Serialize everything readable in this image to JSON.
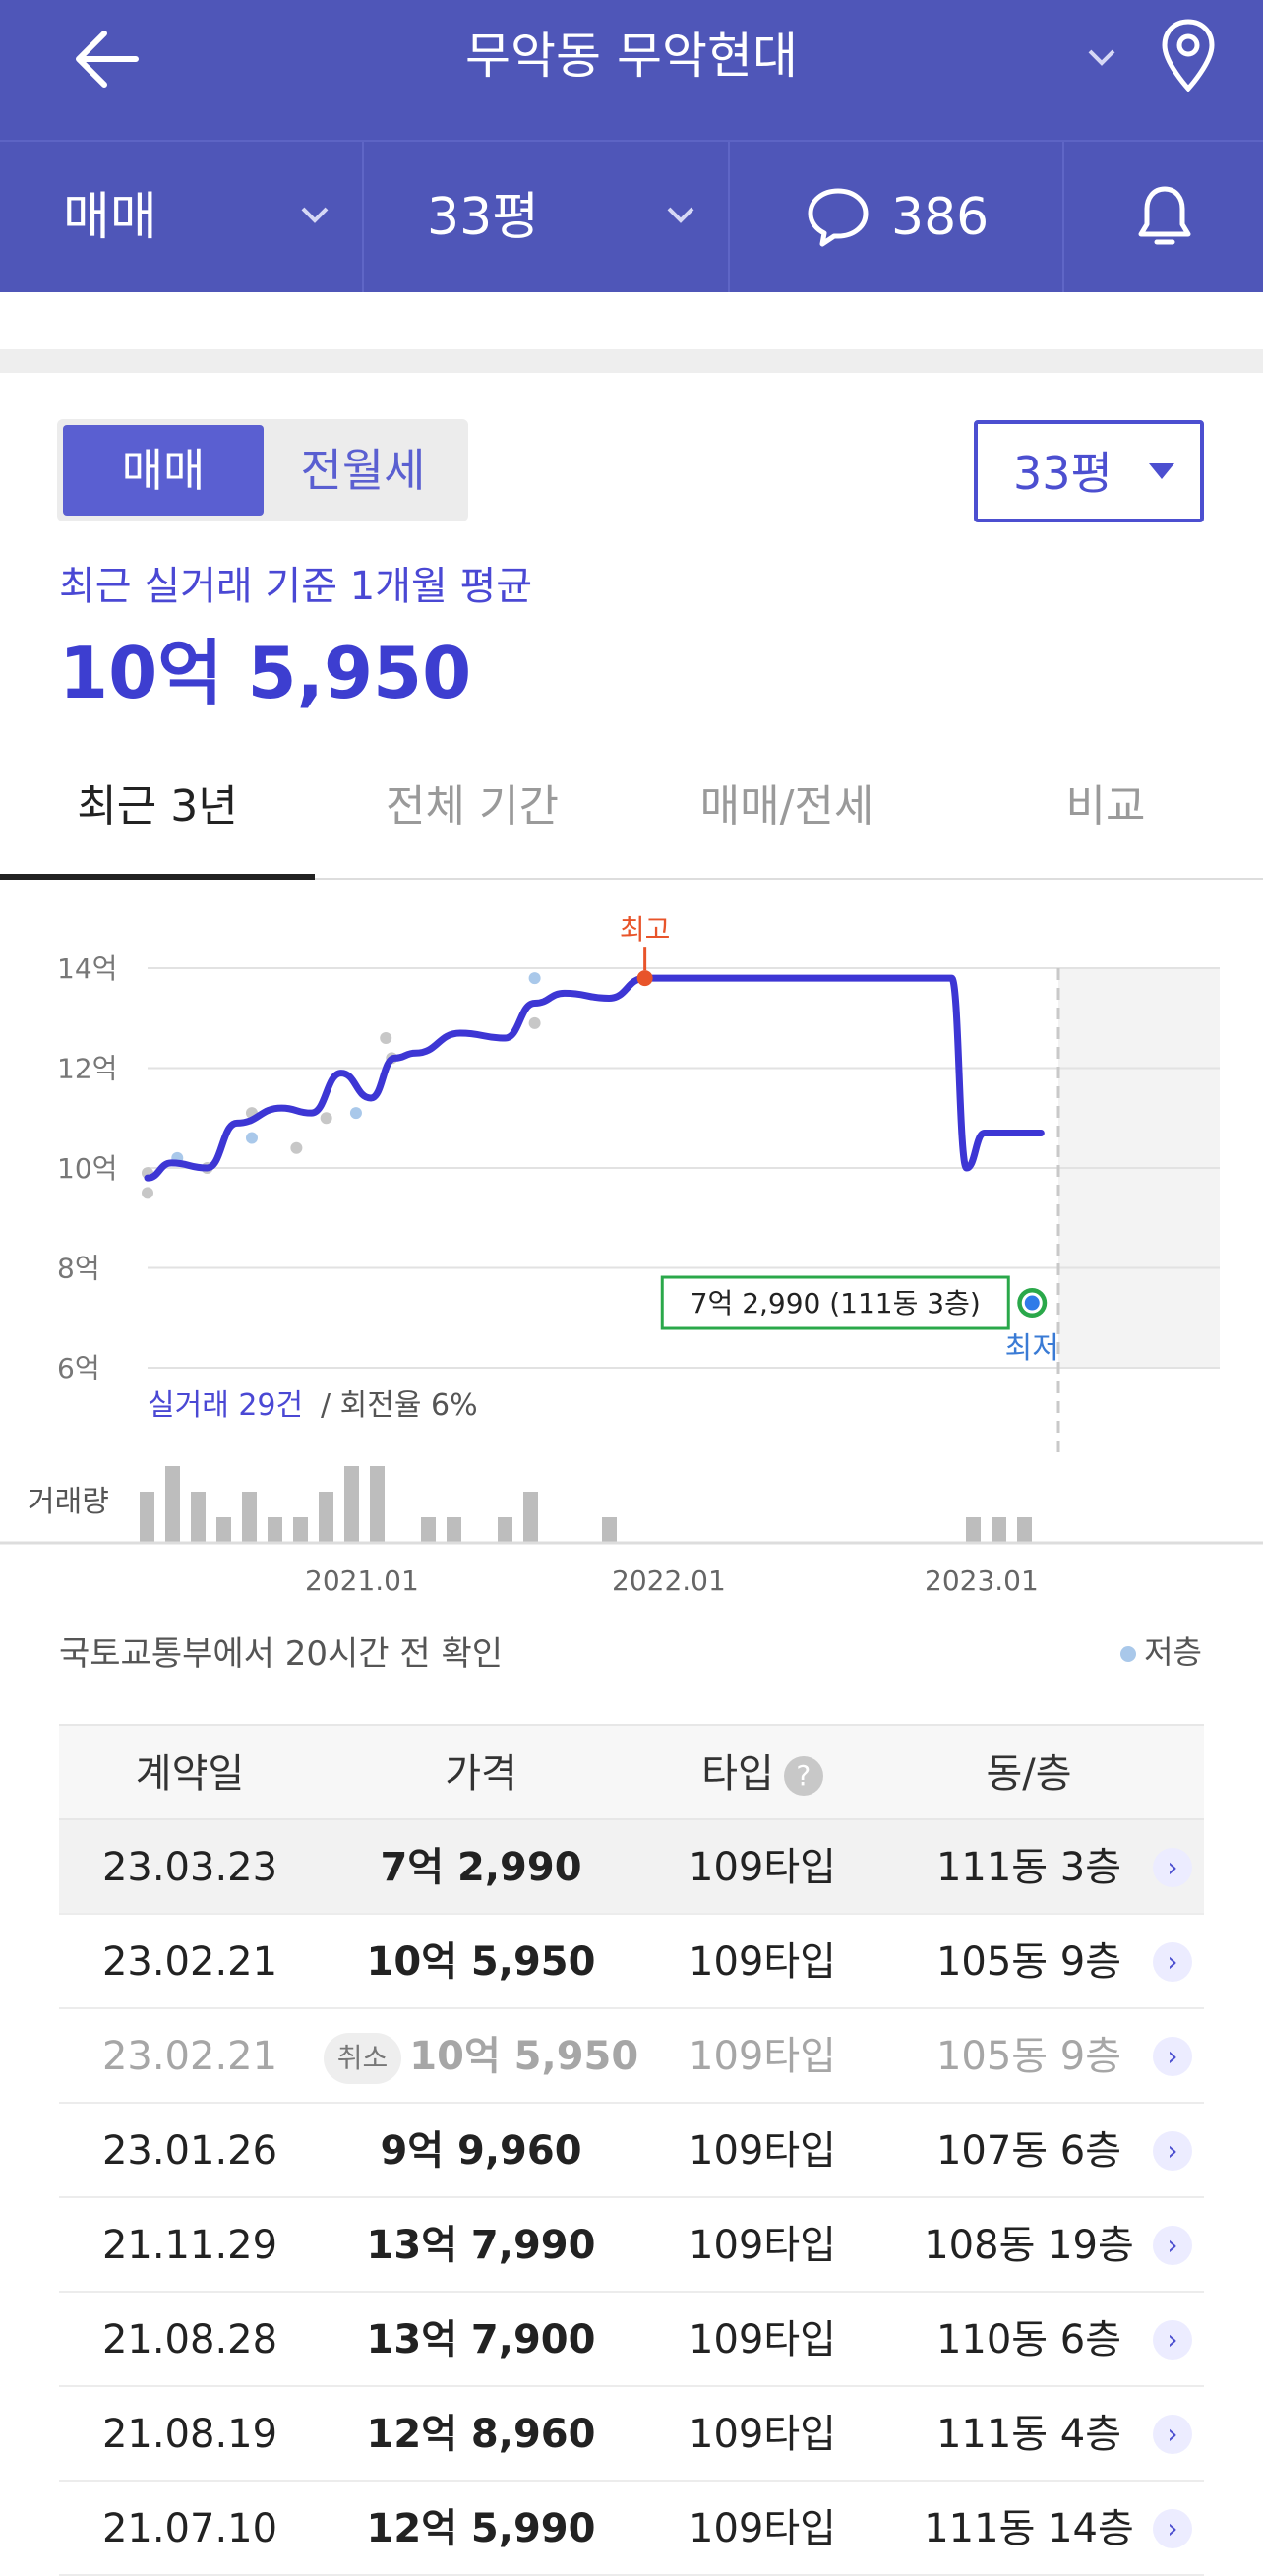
{
  "header": {
    "title": "무악동 무악현대"
  },
  "filters": {
    "trade_type": "매매",
    "area": "33평",
    "comment_count": "386"
  },
  "segment": {
    "on_label": "매매",
    "off_label": "전월세",
    "area_select": "33평"
  },
  "summary": {
    "label": "최근 실거래 기준 1개월 평균",
    "value": "10억 5,950"
  },
  "tabs": [
    "최근 3년",
    "전체 기간",
    "매매/전세",
    "비교"
  ],
  "chart_data": {
    "type": "line",
    "y_ticks": [
      "14억",
      "12억",
      "10억",
      "8억",
      "6억"
    ],
    "ylim": [
      6,
      14
    ],
    "x_ticks": [
      "2021.01",
      "2022.01",
      "2023.01"
    ],
    "series": [
      {
        "x": [
          2020.25,
          2020.33,
          2020.45,
          2020.55,
          2020.7,
          2020.8,
          2020.9,
          2021.0,
          2021.08,
          2021.15,
          2021.3,
          2021.45,
          2021.55,
          2021.65,
          2021.8,
          2021.92,
          2022.2,
          2022.6,
          2022.95,
          2023.0,
          2023.06,
          2023.12,
          2023.25
        ],
        "values": [
          9.8,
          10.1,
          10.0,
          10.9,
          11.2,
          11.1,
          11.9,
          11.4,
          12.2,
          12.3,
          12.7,
          12.6,
          13.3,
          13.5,
          13.4,
          13.8,
          13.8,
          13.8,
          13.8,
          10.0,
          10.7,
          10.7,
          10.7
        ]
      }
    ],
    "scatter_high": {
      "x": [
        2020.25,
        2020.25,
        2020.35,
        2020.45,
        2020.6,
        2020.6,
        2020.75,
        2020.85,
        2020.95,
        2021.05,
        2021.07,
        2021.55,
        2021.55
      ],
      "values": [
        9.5,
        9.9,
        10.2,
        10.0,
        11.1,
        10.6,
        10.4,
        11.0,
        11.1,
        12.6,
        12.2,
        13.8,
        12.9
      ]
    },
    "high_label": "최고",
    "high_point": {
      "x": 2021.92,
      "value": 13.8
    },
    "low_label": "최저",
    "low_point": {
      "x": 2023.22,
      "value": 7.3
    },
    "low_tooltip": "7억 2,990 (111동 3층)",
    "footer_count": "실거래 29건",
    "footer_turnover": " / 회전율 6%",
    "volume_label": "거래량",
    "volume": [
      2,
      3,
      2,
      1,
      2,
      1,
      1,
      2,
      3,
      3,
      1,
      1,
      1,
      2,
      1,
      1,
      1,
      1
    ],
    "colors": {
      "line": "#3d36d4",
      "high": "#e8542a",
      "low": "#2aa84a",
      "dot": "#c7c7c7",
      "dot_low": "#a9c8ea",
      "future": "#f3f3f3"
    }
  },
  "source": "국토교통부에서 20시간 전 확인",
  "legend_low": "저층",
  "table": {
    "headers": [
      "계약일",
      "가격",
      "타입",
      "동/층"
    ],
    "rows": [
      {
        "date": "23.03.23",
        "price": "7억 2,990",
        "type": "109타입",
        "unit": "111동 3층"
      },
      {
        "date": "23.02.21",
        "price": "10억 5,950",
        "type": "109타입",
        "unit": "105동 9층"
      },
      {
        "date": "23.02.21",
        "price": "10억 5,950",
        "type": "109타입",
        "unit": "105동 9층",
        "badge": "취소"
      },
      {
        "date": "23.01.26",
        "price": "9억 9,960",
        "type": "109타입",
        "unit": "107동 6층"
      },
      {
        "date": "21.11.29",
        "price": "13억 7,990",
        "type": "109타입",
        "unit": "108동 19층"
      },
      {
        "date": "21.08.28",
        "price": "13억 7,900",
        "type": "109타입",
        "unit": "110동 6층"
      },
      {
        "date": "21.08.19",
        "price": "12억 8,960",
        "type": "109타입",
        "unit": "111동 4층"
      },
      {
        "date": "21.07.10",
        "price": "12억 5,990",
        "type": "109타입",
        "unit": "111동 14층"
      }
    ]
  }
}
